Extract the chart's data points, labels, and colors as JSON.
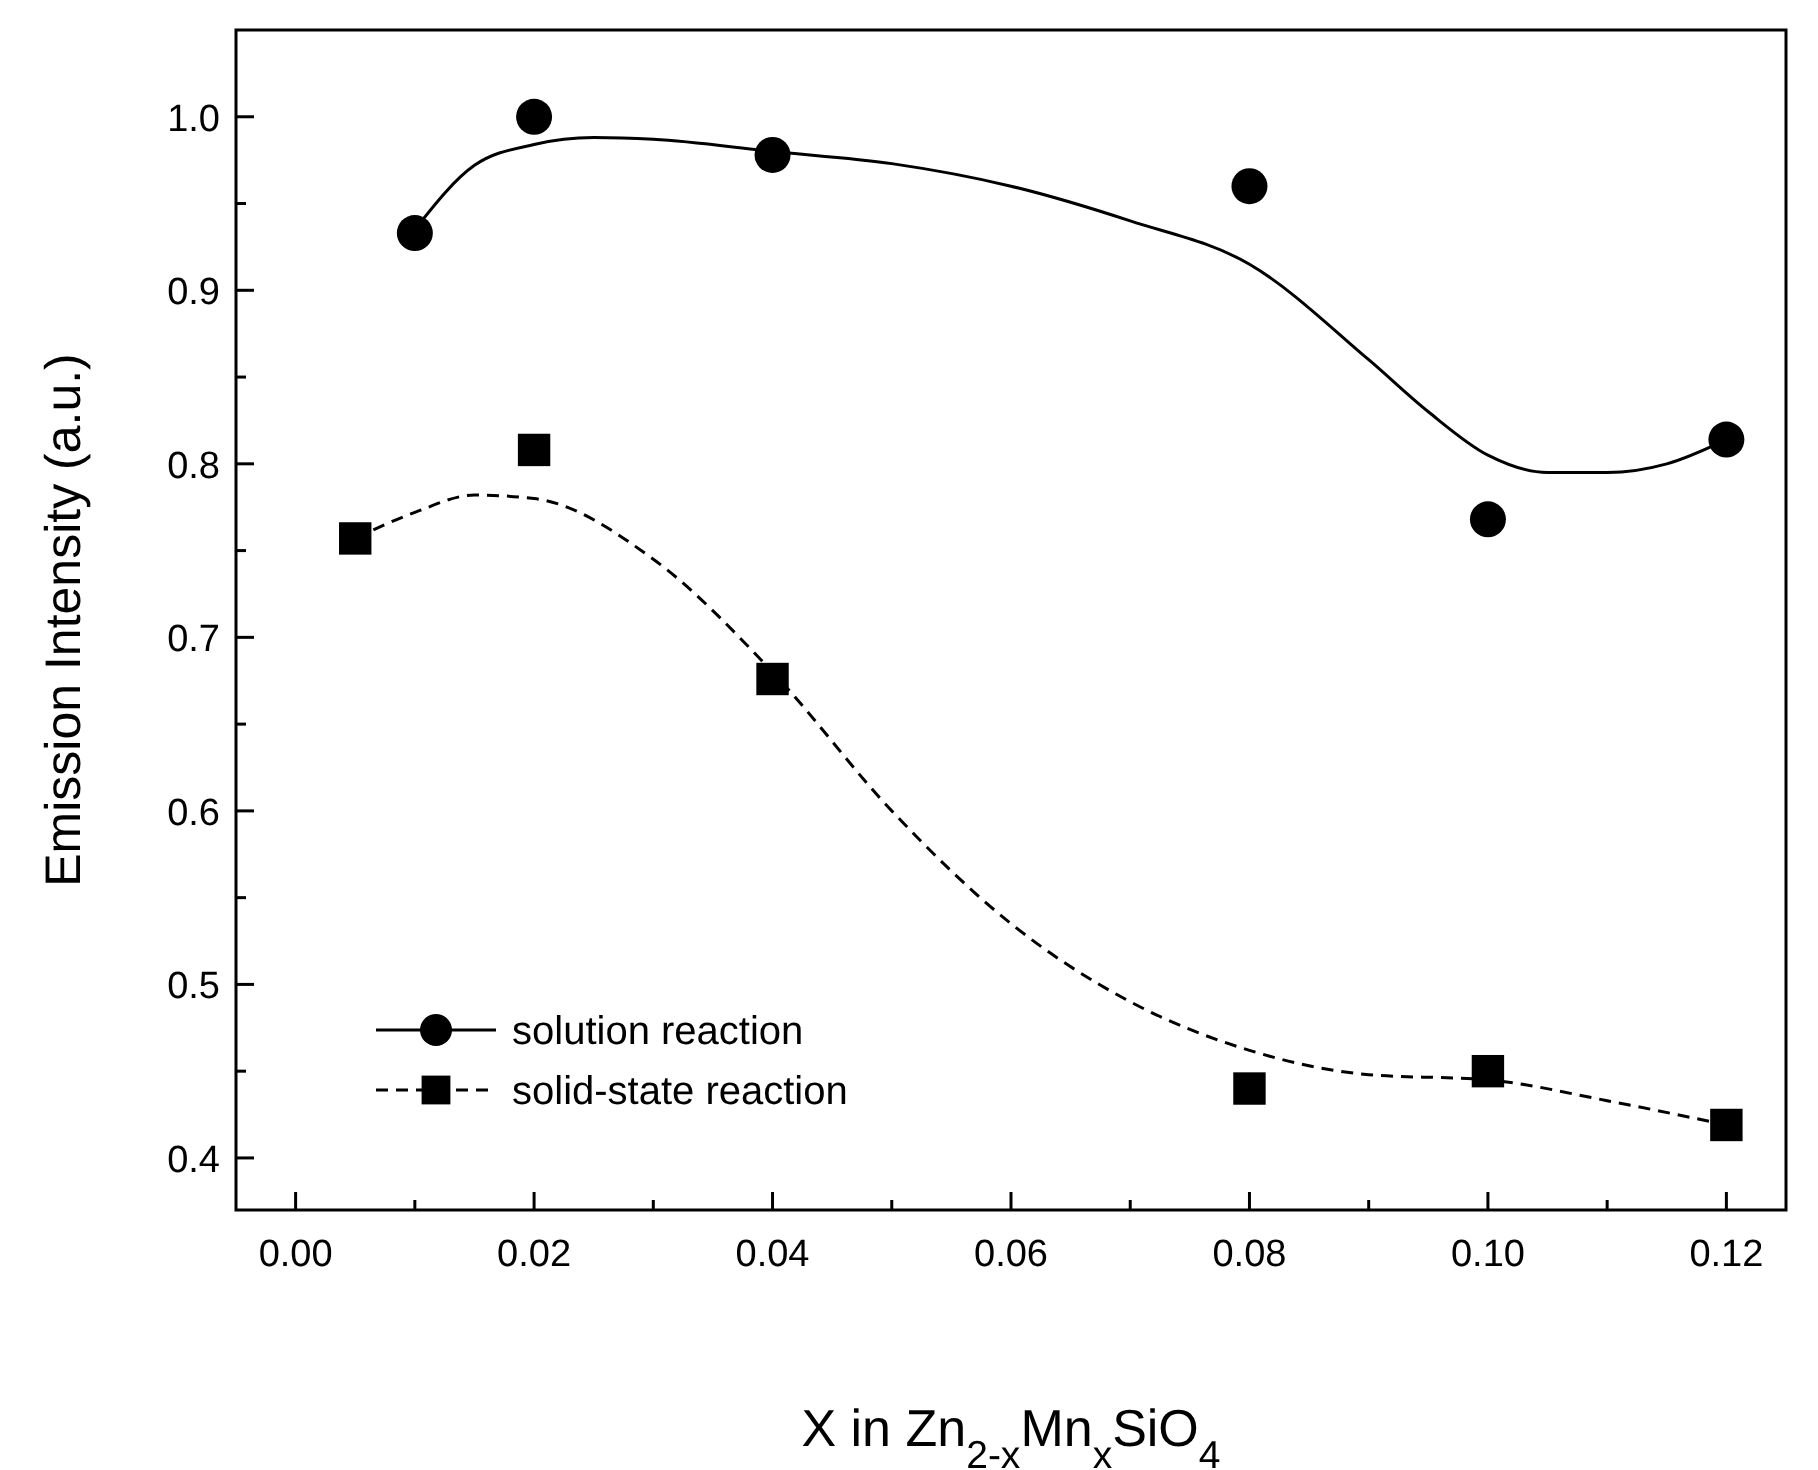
{
  "chart_data": {
    "type": "scatter",
    "xlabel": "X  in  Zn$_{2-x}$Mn$_{x}$SiO$_{4}$",
    "ylabel": "Emission  Intensity (a.u.)",
    "xlim": [
      -0.005,
      0.125
    ],
    "ylim": [
      0.37,
      1.05
    ],
    "xticks": [
      {
        "value": 0,
        "label": "0.00"
      },
      {
        "value": 0.01,
        "label": null
      },
      {
        "value": 0.02,
        "label": "0.02"
      },
      {
        "value": 0.03,
        "label": null
      },
      {
        "value": 0.04,
        "label": "0.04"
      },
      {
        "value": 0.05,
        "label": null
      },
      {
        "value": 0.06,
        "label": "0.06"
      },
      {
        "value": 0.07,
        "label": null
      },
      {
        "value": 0.08,
        "label": "0.08"
      },
      {
        "value": 0.09,
        "label": null
      },
      {
        "value": 0.1,
        "label": "0.10"
      },
      {
        "value": 0.11,
        "label": null
      },
      {
        "value": 0.12,
        "label": "0.12"
      }
    ],
    "yticks": [
      {
        "value": 0.4,
        "label": "0.4"
      },
      {
        "value": 0.45,
        "label": null
      },
      {
        "value": 0.5,
        "label": "0.5"
      },
      {
        "value": 0.55,
        "label": null
      },
      {
        "value": 0.6,
        "label": "0.6"
      },
      {
        "value": 0.65,
        "label": null
      },
      {
        "value": 0.7,
        "label": "0.7"
      },
      {
        "value": 0.75,
        "label": null
      },
      {
        "value": 0.8,
        "label": "0.8"
      },
      {
        "value": 0.85,
        "label": null
      },
      {
        "value": 0.9,
        "label": "0.9"
      },
      {
        "value": 0.95,
        "label": null
      },
      {
        "value": 1.0,
        "label": "1.0"
      }
    ],
    "grid": false,
    "legend": "bottom left",
    "series": [
      {
        "name": "solution reaction",
        "marker": "circle",
        "line_style": "solid",
        "color": "#000000",
        "x": [
          0.01,
          0.02,
          0.04,
          0.08,
          0.1,
          0.12
        ],
        "values": [
          0.933,
          1.0,
          0.978,
          0.96,
          0.768,
          0.814
        ]
      },
      {
        "type": "line",
        "marker": "none",
        "line_style": "solid",
        "color": "#000000",
        "x": [
          0.01,
          0.015,
          0.02,
          0.025,
          0.03,
          0.04,
          0.05,
          0.06,
          0.07,
          0.08,
          0.09,
          0.095,
          0.1,
          0.105,
          0.11,
          0.115,
          0.12
        ],
        "values": [
          0.935,
          0.972,
          0.984,
          0.988,
          0.987,
          0.98,
          0.973,
          0.96,
          0.94,
          0.915,
          0.86,
          0.83,
          0.805,
          0.795,
          0.795,
          0.8,
          0.814
        ]
      },
      {
        "name": "solid-state reaction",
        "marker": "square",
        "line_style": "dashed",
        "color": "#000000",
        "x": [
          0.005,
          0.02,
          0.04,
          0.08,
          0.1,
          0.12
        ],
        "values": [
          0.757,
          0.808,
          0.676,
          0.44,
          0.45,
          0.419
        ]
      },
      {
        "type": "line",
        "marker": "none",
        "line_style": "dashed",
        "color": "#000000",
        "x": [
          0.005,
          0.01,
          0.015,
          0.02,
          0.03,
          0.04,
          0.05,
          0.06,
          0.07,
          0.08,
          0.09,
          0.1,
          0.11,
          0.12
        ],
        "values": [
          0.757,
          0.772,
          0.782,
          0.78,
          0.745,
          0.68,
          0.6,
          0.535,
          0.49,
          0.462,
          0.448,
          0.445,
          0.433,
          0.419
        ]
      }
    ]
  }
}
